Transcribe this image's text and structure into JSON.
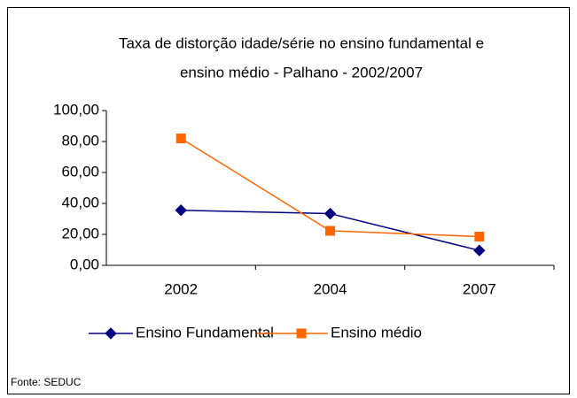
{
  "chart_data": {
    "type": "line",
    "title": [
      "Taxa de distorção idade/série no ensino fundamental e",
      "ensino médio - Palhano  -  2002/2007"
    ],
    "categories": [
      "2002",
      "2004",
      "2007"
    ],
    "series": [
      {
        "name": "Ensino Fundamental",
        "color": "#000080",
        "marker": "diamond",
        "values": [
          35.6,
          33.4,
          9.6
        ]
      },
      {
        "name": "Ensino médio",
        "color": "#ff6600",
        "marker": "square",
        "values": [
          82,
          22.3,
          18.6
        ]
      }
    ],
    "ylim": [
      0,
      100
    ],
    "yticks": [
      {
        "value": 0,
        "label": "0,00"
      },
      {
        "value": 20,
        "label": "20,00"
      },
      {
        "value": 40,
        "label": "40,00"
      },
      {
        "value": 60,
        "label": "60,00"
      },
      {
        "value": 80,
        "label": "80,00"
      },
      {
        "value": 100,
        "label": "100,00"
      }
    ],
    "legend": "bottom",
    "source": "Fonte: SEDUC"
  }
}
